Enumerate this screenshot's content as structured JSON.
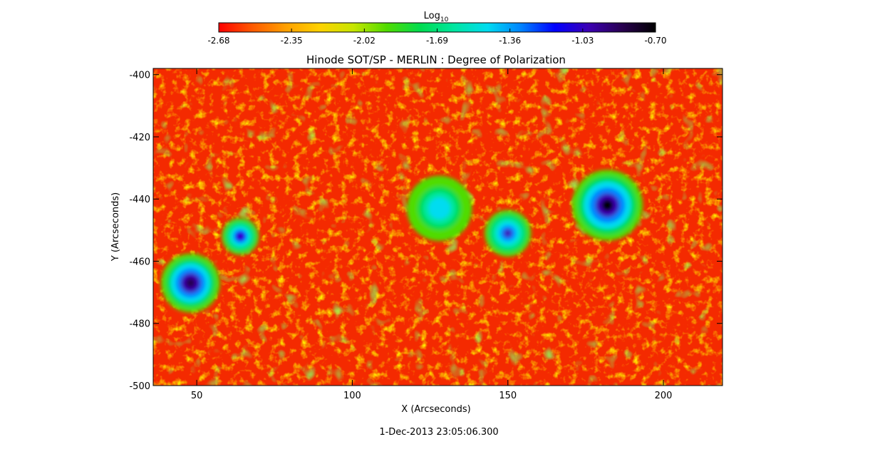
{
  "colorbar": {
    "label_base": "Log",
    "label_sub": "10",
    "ticks": [
      "-2.68",
      "-2.35",
      "-2.02",
      "-1.69",
      "-1.36",
      "-1.03",
      "-0.70"
    ],
    "range": [
      -2.68,
      -0.7
    ],
    "colors": [
      "#ff0000",
      "#ff5a00",
      "#ffa000",
      "#ffd200",
      "#c8e600",
      "#50dc00",
      "#00dc50",
      "#00e6a0",
      "#00dcf0",
      "#0082ff",
      "#0000ff",
      "#3c00b4",
      "#280050",
      "#000000"
    ]
  },
  "timestamp": "1-Dec-2013 23:05:06.300",
  "chart_data": {
    "type": "heatmap",
    "title": "Hinode SOT/SP - MERLIN : Degree of Polarization",
    "xlabel": "X (Arcseconds)",
    "ylabel": "Y (Arcseconds)",
    "xlim": [
      36,
      219
    ],
    "ylim": [
      -500,
      -398
    ],
    "xticks": [
      "50",
      "100",
      "150",
      "200"
    ],
    "yticks": [
      "-400",
      "-420",
      "-440",
      "-460",
      "-480",
      "-500"
    ],
    "colorbar_range": [
      -2.68,
      -0.7
    ],
    "features": [
      {
        "kind": "umbra",
        "x": 182,
        "y": -442,
        "radius": 6,
        "peak": -0.75
      },
      {
        "kind": "umbra",
        "x": 48,
        "y": -467,
        "radius": 5,
        "peak": -0.78
      },
      {
        "kind": "pore-cluster",
        "x": 64,
        "y": -452,
        "radius": 4,
        "peak": -1.0
      },
      {
        "kind": "network",
        "x": 150,
        "y": -451,
        "radius": 5,
        "peak": -1.05
      },
      {
        "kind": "network",
        "x": 128,
        "y": -443,
        "radius": 7,
        "peak": -1.4
      }
    ]
  }
}
